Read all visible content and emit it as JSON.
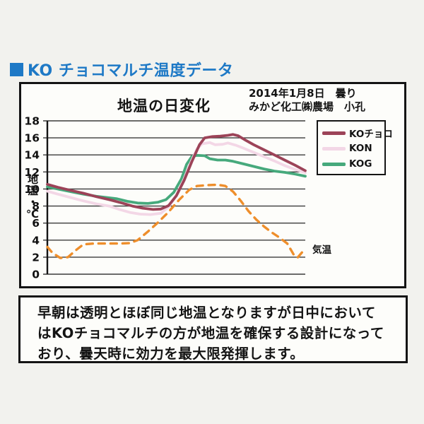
{
  "page_title": {
    "text": "KO チョコマルチ温度データ",
    "accent_color": "#1e79c6"
  },
  "chart_panel": {
    "title": "地温の日変化",
    "date_line1": "2014年1月8日　曇り",
    "date_line2": "みかど化工㈱農場　小孔",
    "y_axis_title": "地温・℃",
    "air_temp_label": "気温"
  },
  "legend": {
    "items": [
      {
        "label": "KOチョコ",
        "color": "#9c4358"
      },
      {
        "label": "KON",
        "color": "#f3d7e6"
      },
      {
        "label": "KOG",
        "color": "#46a97c"
      }
    ]
  },
  "note": {
    "lines": [
      "早朝は透明とほぼ同じ地温となりますが日中において",
      "はKOチョコマルチの方が地温を確保する設計になって",
      "おり、曇天時に効力を最大限発揮します。"
    ]
  },
  "chart_data": {
    "type": "line",
    "title": "地温の日変化",
    "xlabel": "",
    "ylabel": "地温・℃",
    "ylim": [
      0,
      18
    ],
    "ytick_step": 2,
    "grid": "horizontal",
    "x_axis_note": "no x tick labels shown; x spans one day, normalized 0-1",
    "legend_position": "top-right",
    "series": [
      {
        "name": "KOチョコ",
        "color": "#9c4358",
        "style": "solid",
        "points": [
          [
            0,
            10.55
          ],
          [
            0.04,
            10.2
          ],
          [
            0.09,
            9.85
          ],
          [
            0.14,
            9.5
          ],
          [
            0.19,
            9.1
          ],
          [
            0.24,
            8.75
          ],
          [
            0.29,
            8.35
          ],
          [
            0.33,
            8.0
          ],
          [
            0.37,
            7.75
          ],
          [
            0.41,
            7.6
          ],
          [
            0.44,
            7.65
          ],
          [
            0.47,
            8.05
          ],
          [
            0.5,
            9.2
          ],
          [
            0.53,
            11.0
          ],
          [
            0.56,
            13.2
          ],
          [
            0.59,
            15.2
          ],
          [
            0.61,
            16.0
          ],
          [
            0.64,
            16.15
          ],
          [
            0.67,
            16.2
          ],
          [
            0.7,
            16.3
          ],
          [
            0.72,
            16.4
          ],
          [
            0.74,
            16.25
          ],
          [
            0.77,
            15.7
          ],
          [
            0.8,
            15.2
          ],
          [
            0.84,
            14.6
          ],
          [
            0.88,
            14.0
          ],
          [
            0.92,
            13.4
          ],
          [
            0.96,
            12.8
          ],
          [
            1,
            12.15
          ]
        ]
      },
      {
        "name": "KON",
        "color": "#f3d7e6",
        "style": "solid",
        "points": [
          [
            0,
            9.75
          ],
          [
            0.04,
            9.4
          ],
          [
            0.09,
            9.0
          ],
          [
            0.14,
            8.6
          ],
          [
            0.19,
            8.25
          ],
          [
            0.24,
            8.0
          ],
          [
            0.28,
            7.6
          ],
          [
            0.32,
            7.25
          ],
          [
            0.36,
            7.05
          ],
          [
            0.4,
            7.0
          ],
          [
            0.44,
            7.15
          ],
          [
            0.47,
            7.9
          ],
          [
            0.5,
            9.2
          ],
          [
            0.53,
            11.2
          ],
          [
            0.56,
            13.4
          ],
          [
            0.58,
            14.7
          ],
          [
            0.6,
            15.3
          ],
          [
            0.63,
            15.45
          ],
          [
            0.65,
            15.2
          ],
          [
            0.68,
            15.25
          ],
          [
            0.7,
            15.4
          ],
          [
            0.73,
            15.15
          ],
          [
            0.76,
            14.8
          ],
          [
            0.8,
            14.3
          ],
          [
            0.84,
            13.8
          ],
          [
            0.88,
            13.3
          ],
          [
            0.92,
            12.75
          ],
          [
            0.96,
            12.3
          ],
          [
            1,
            11.9
          ]
        ]
      },
      {
        "name": "KOG",
        "color": "#46a97c",
        "style": "solid",
        "points": [
          [
            0,
            10.25
          ],
          [
            0.04,
            10.0
          ],
          [
            0.09,
            9.7
          ],
          [
            0.14,
            9.4
          ],
          [
            0.19,
            9.15
          ],
          [
            0.23,
            9.0
          ],
          [
            0.27,
            8.85
          ],
          [
            0.31,
            8.55
          ],
          [
            0.35,
            8.35
          ],
          [
            0.39,
            8.3
          ],
          [
            0.43,
            8.45
          ],
          [
            0.46,
            8.75
          ],
          [
            0.49,
            9.6
          ],
          [
            0.52,
            11.2
          ],
          [
            0.54,
            12.9
          ],
          [
            0.56,
            13.8
          ],
          [
            0.58,
            13.95
          ],
          [
            0.61,
            13.9
          ],
          [
            0.63,
            13.55
          ],
          [
            0.66,
            13.4
          ],
          [
            0.69,
            13.4
          ],
          [
            0.72,
            13.25
          ],
          [
            0.76,
            12.95
          ],
          [
            0.8,
            12.65
          ],
          [
            0.84,
            12.35
          ],
          [
            0.88,
            12.1
          ],
          [
            0.92,
            11.95
          ],
          [
            0.96,
            11.75
          ],
          [
            1,
            11.5
          ]
        ]
      },
      {
        "name": "気温",
        "color": "#ee8e2b",
        "style": "dashed",
        "label_y": 2.9,
        "points": [
          [
            0,
            3.2
          ],
          [
            0.02,
            2.5
          ],
          [
            0.05,
            1.9
          ],
          [
            0.08,
            2.0
          ],
          [
            0.11,
            2.8
          ],
          [
            0.14,
            3.5
          ],
          [
            0.18,
            3.6
          ],
          [
            0.23,
            3.6
          ],
          [
            0.28,
            3.6
          ],
          [
            0.32,
            3.65
          ],
          [
            0.35,
            4.0
          ],
          [
            0.39,
            5.0
          ],
          [
            0.43,
            6.1
          ],
          [
            0.47,
            7.3
          ],
          [
            0.51,
            8.7
          ],
          [
            0.55,
            9.9
          ],
          [
            0.58,
            10.35
          ],
          [
            0.62,
            10.45
          ],
          [
            0.66,
            10.5
          ],
          [
            0.69,
            10.35
          ],
          [
            0.72,
            9.7
          ],
          [
            0.75,
            8.6
          ],
          [
            0.78,
            7.4
          ],
          [
            0.81,
            6.4
          ],
          [
            0.84,
            5.6
          ],
          [
            0.87,
            4.9
          ],
          [
            0.9,
            4.3
          ],
          [
            0.93,
            3.6
          ],
          [
            0.955,
            2.3
          ],
          [
            0.97,
            1.95
          ],
          [
            1,
            3.0
          ]
        ]
      }
    ]
  }
}
